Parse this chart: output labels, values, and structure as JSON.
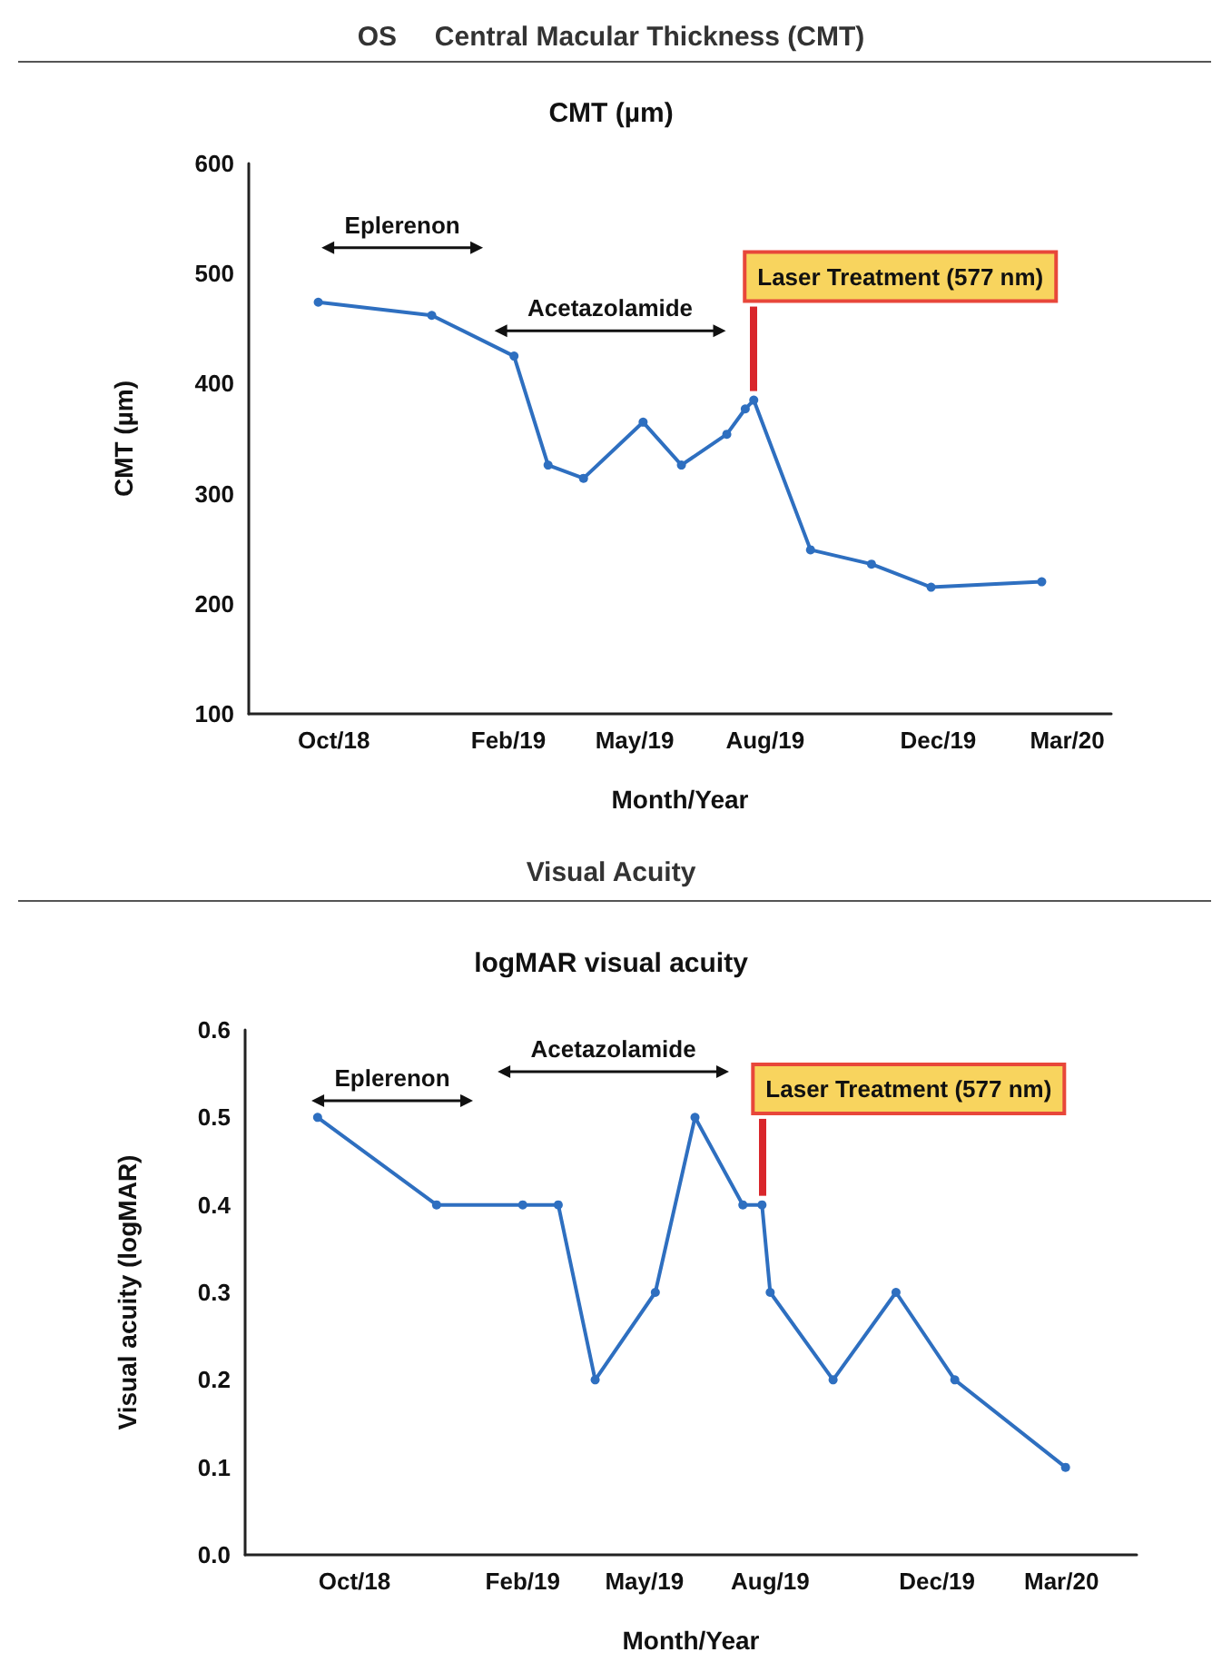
{
  "chart_data": [
    {
      "type": "line",
      "subtitle": "OS     Central Macular Thickness (CMT)",
      "title": "CMT (µm)",
      "xlabel": "Month/Year",
      "ylabel": "CMT (µm)",
      "x": [
        "2018-09-20",
        "2018-12-09",
        "2019-02-05",
        "2019-03-01",
        "2019-03-26",
        "2019-05-07",
        "2019-06-03",
        "2019-07-05",
        "2019-07-18",
        "2019-07-24",
        "2019-09-02",
        "2019-10-15",
        "2019-11-26",
        "2020-02-12"
      ],
      "series": [
        {
          "color": "#2e6fc0",
          "values": [
            474,
            462,
            425,
            326,
            314,
            365,
            326,
            354,
            377,
            385,
            249,
            236,
            215,
            220
          ]
        }
      ],
      "xlim": [
        "2018-08-02",
        "2020-04-01"
      ],
      "xticks": [
        {
          "value": "2018-10-01",
          "label": "Oct/18"
        },
        {
          "value": "2019-02-01",
          "label": "Feb/19"
        },
        {
          "value": "2019-05-01",
          "label": "May/19"
        },
        {
          "value": "2019-08-01",
          "label": "Aug/19"
        },
        {
          "value": "2019-12-01",
          "label": "Dec/19"
        },
        {
          "value": "2020-03-01",
          "label": "Mar/20"
        }
      ],
      "ylim": [
        100,
        600
      ],
      "yticks": [
        100,
        200,
        300,
        400,
        500,
        600
      ],
      "grid": false,
      "marker": "circle",
      "line_style": "solid",
      "annotations": [
        "Eplerenon",
        "Acetazolamide",
        {
          "text": "Laser Treatment (577 nm)",
          "x": "2019-07-24",
          "y": 385
        }
      ]
    },
    {
      "type": "line",
      "subtitle": "Visual Acuity",
      "title": "logMAR visual acuity",
      "xlabel": "Month/Year",
      "ylabel": "Visual acuity (logMAR)",
      "x": [
        "2018-09-04",
        "2018-11-30",
        "2019-02-01",
        "2019-02-27",
        "2019-03-26",
        "2019-05-09",
        "2019-06-07",
        "2019-07-12",
        "2019-07-26",
        "2019-08-01",
        "2019-09-16",
        "2019-11-01",
        "2019-12-14",
        "2020-03-04"
      ],
      "series": [
        {
          "color": "#2e6fc0",
          "values": [
            0.5,
            0.4,
            0.4,
            0.4,
            0.2,
            0.3,
            0.5,
            0.4,
            0.4,
            0.3,
            0.2,
            0.3,
            0.2,
            0.1
          ]
        }
      ],
      "xlim": [
        "2018-07-13",
        "2020-04-25"
      ],
      "xticks": [
        {
          "value": "2018-10-01",
          "label": "Oct/18"
        },
        {
          "value": "2019-02-01",
          "label": "Feb/19"
        },
        {
          "value": "2019-05-01",
          "label": "May/19"
        },
        {
          "value": "2019-08-01",
          "label": "Aug/19"
        },
        {
          "value": "2019-12-01",
          "label": "Dec/19"
        },
        {
          "value": "2020-03-01",
          "label": "Mar/20"
        }
      ],
      "ylim": [
        0,
        0.6
      ],
      "yticks": [
        {
          "value": 0,
          "label": "0.0"
        },
        {
          "value": 0.1,
          "label": "0.1"
        },
        {
          "value": 0.2,
          "label": "0.2"
        },
        {
          "value": 0.3,
          "label": "0.3"
        },
        {
          "value": 0.4,
          "label": "0.4"
        },
        {
          "value": 0.5,
          "label": "0.5"
        },
        {
          "value": 0.6,
          "label": "0.6"
        }
      ],
      "grid": false,
      "marker": "circle",
      "line_style": "solid",
      "annotations": [
        "Eplerenon",
        "Acetazolamide",
        {
          "text": "Laser Treatment (577 nm)",
          "x": "2019-07-26",
          "y": 0.4
        }
      ]
    }
  ]
}
